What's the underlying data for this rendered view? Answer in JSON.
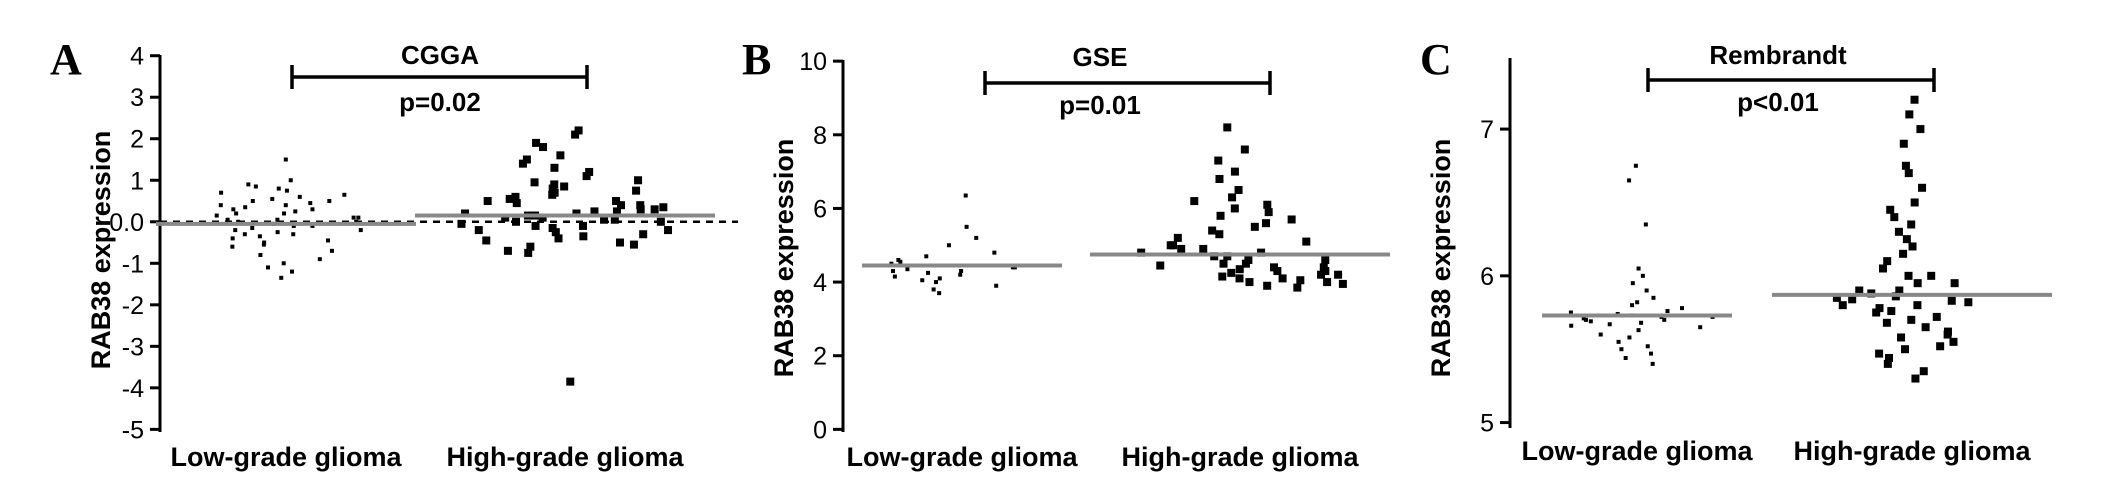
{
  "chart_data": [
    {
      "panel": "A",
      "type": "scatter",
      "title": "CGGA",
      "annotation": "p=0.02",
      "ylabel": "RAB38 expression",
      "categories": [
        "Low-grade glioma",
        "High-grade glioma"
      ],
      "ylim": [
        -5,
        4
      ],
      "yticks": [
        "4",
        "3",
        "2",
        "1",
        "0.0",
        "-1",
        "-2",
        "-3",
        "-4",
        "-5"
      ],
      "ytick_values": [
        4,
        3,
        2,
        1,
        0,
        -1,
        -2,
        -3,
        -4,
        -5
      ],
      "zero_reference_line": true,
      "means": [
        -0.05,
        0.15
      ],
      "series": [
        {
          "category": "Low-grade glioma",
          "values": [
            1.5,
            1.0,
            0.9,
            0.85,
            0.8,
            0.75,
            0.7,
            0.65,
            0.6,
            0.55,
            0.5,
            0.5,
            0.45,
            0.4,
            0.4,
            0.35,
            0.3,
            0.3,
            0.25,
            0.2,
            0.2,
            0.15,
            0.1,
            0.1,
            0.05,
            0.05,
            0.0,
            0.0,
            -0.05,
            -0.1,
            -0.1,
            -0.15,
            -0.2,
            -0.2,
            -0.25,
            -0.3,
            -0.3,
            -0.35,
            -0.4,
            -0.45,
            -0.5,
            -0.55,
            -0.6,
            -0.7,
            -0.8,
            -0.9,
            -1.0,
            -1.1,
            -1.2,
            -1.35
          ]
        },
        {
          "category": "High-grade glioma",
          "values": [
            2.2,
            2.1,
            1.9,
            1.8,
            1.6,
            1.5,
            1.4,
            1.3,
            1.2,
            1.1,
            1.0,
            0.95,
            0.9,
            0.85,
            0.8,
            0.75,
            0.7,
            0.65,
            0.6,
            0.55,
            0.5,
            0.5,
            0.45,
            0.4,
            0.4,
            0.35,
            0.3,
            0.3,
            0.25,
            0.25,
            0.2,
            0.2,
            0.15,
            0.15,
            0.1,
            0.1,
            0.05,
            0.05,
            0.0,
            0.0,
            -0.05,
            -0.1,
            -0.1,
            -0.15,
            -0.2,
            -0.2,
            -0.25,
            -0.3,
            -0.35,
            -0.4,
            -0.45,
            -0.5,
            -0.55,
            -0.6,
            -0.7,
            -0.75,
            -3.85
          ]
        }
      ]
    },
    {
      "panel": "B",
      "type": "scatter",
      "title": "GSE",
      "annotation": "p=0.01",
      "ylabel": "RAB38 expression",
      "categories": [
        "Low-grade glioma",
        "High-grade glioma"
      ],
      "ylim": [
        0,
        10
      ],
      "yticks": [
        "10",
        "8",
        "6",
        "4",
        "2",
        "0"
      ],
      "ytick_values": [
        10,
        8,
        6,
        4,
        2,
        0
      ],
      "zero_reference_line": false,
      "means": [
        4.45,
        4.75
      ],
      "series": [
        {
          "category": "Low-grade glioma",
          "values": [
            6.35,
            5.5,
            5.2,
            5.0,
            4.8,
            4.7,
            4.6,
            4.55,
            4.5,
            4.45,
            4.4,
            4.4,
            4.35,
            4.3,
            4.3,
            4.25,
            4.2,
            4.15,
            4.1,
            4.05,
            4.0,
            3.9,
            3.8,
            3.7
          ]
        },
        {
          "category": "High-grade glioma",
          "values": [
            8.2,
            7.6,
            7.3,
            7.0,
            6.8,
            6.5,
            6.3,
            6.2,
            6.1,
            6.0,
            5.9,
            5.8,
            5.7,
            5.6,
            5.5,
            5.4,
            5.3,
            5.2,
            5.1,
            5.0,
            5.0,
            4.9,
            4.9,
            4.8,
            4.8,
            4.7,
            4.7,
            4.6,
            4.6,
            4.5,
            4.5,
            4.45,
            4.4,
            4.4,
            4.35,
            4.3,
            4.3,
            4.25,
            4.2,
            4.2,
            4.15,
            4.1,
            4.1,
            4.05,
            4.0,
            4.0,
            3.95,
            3.9,
            3.85
          ]
        }
      ]
    },
    {
      "panel": "C",
      "type": "scatter",
      "title": "Rembrandt",
      "annotation": "p<0.01",
      "ylabel": "RAB38 expression",
      "categories": [
        "Low-grade glioma",
        "High-grade glioma"
      ],
      "ylim": [
        5,
        7.5
      ],
      "yticks": [
        "7",
        "6",
        "5"
      ],
      "ytick_values": [
        7,
        6,
        5
      ],
      "zero_reference_line": false,
      "means": [
        5.73,
        5.87
      ],
      "series": [
        {
          "category": "Low-grade glioma",
          "values": [
            6.75,
            6.65,
            6.35,
            6.05,
            6.0,
            5.95,
            5.9,
            5.85,
            5.82,
            5.8,
            5.78,
            5.76,
            5.75,
            5.74,
            5.73,
            5.72,
            5.72,
            5.71,
            5.7,
            5.7,
            5.69,
            5.68,
            5.67,
            5.66,
            5.65,
            5.63,
            5.6,
            5.58,
            5.55,
            5.52,
            5.5,
            5.47,
            5.44,
            5.4
          ]
        },
        {
          "category": "High-grade glioma",
          "values": [
            7.2,
            7.1,
            7.0,
            6.9,
            6.75,
            6.7,
            6.6,
            6.5,
            6.45,
            6.4,
            6.35,
            6.3,
            6.25,
            6.2,
            6.15,
            6.1,
            6.05,
            6.0,
            6.0,
            5.95,
            5.95,
            5.9,
            5.9,
            5.88,
            5.86,
            5.85,
            5.84,
            5.83,
            5.82,
            5.8,
            5.8,
            5.78,
            5.76,
            5.75,
            5.72,
            5.7,
            5.68,
            5.65,
            5.62,
            5.6,
            5.58,
            5.55,
            5.52,
            5.5,
            5.47,
            5.44,
            5.4,
            5.35,
            5.3
          ]
        }
      ]
    }
  ]
}
